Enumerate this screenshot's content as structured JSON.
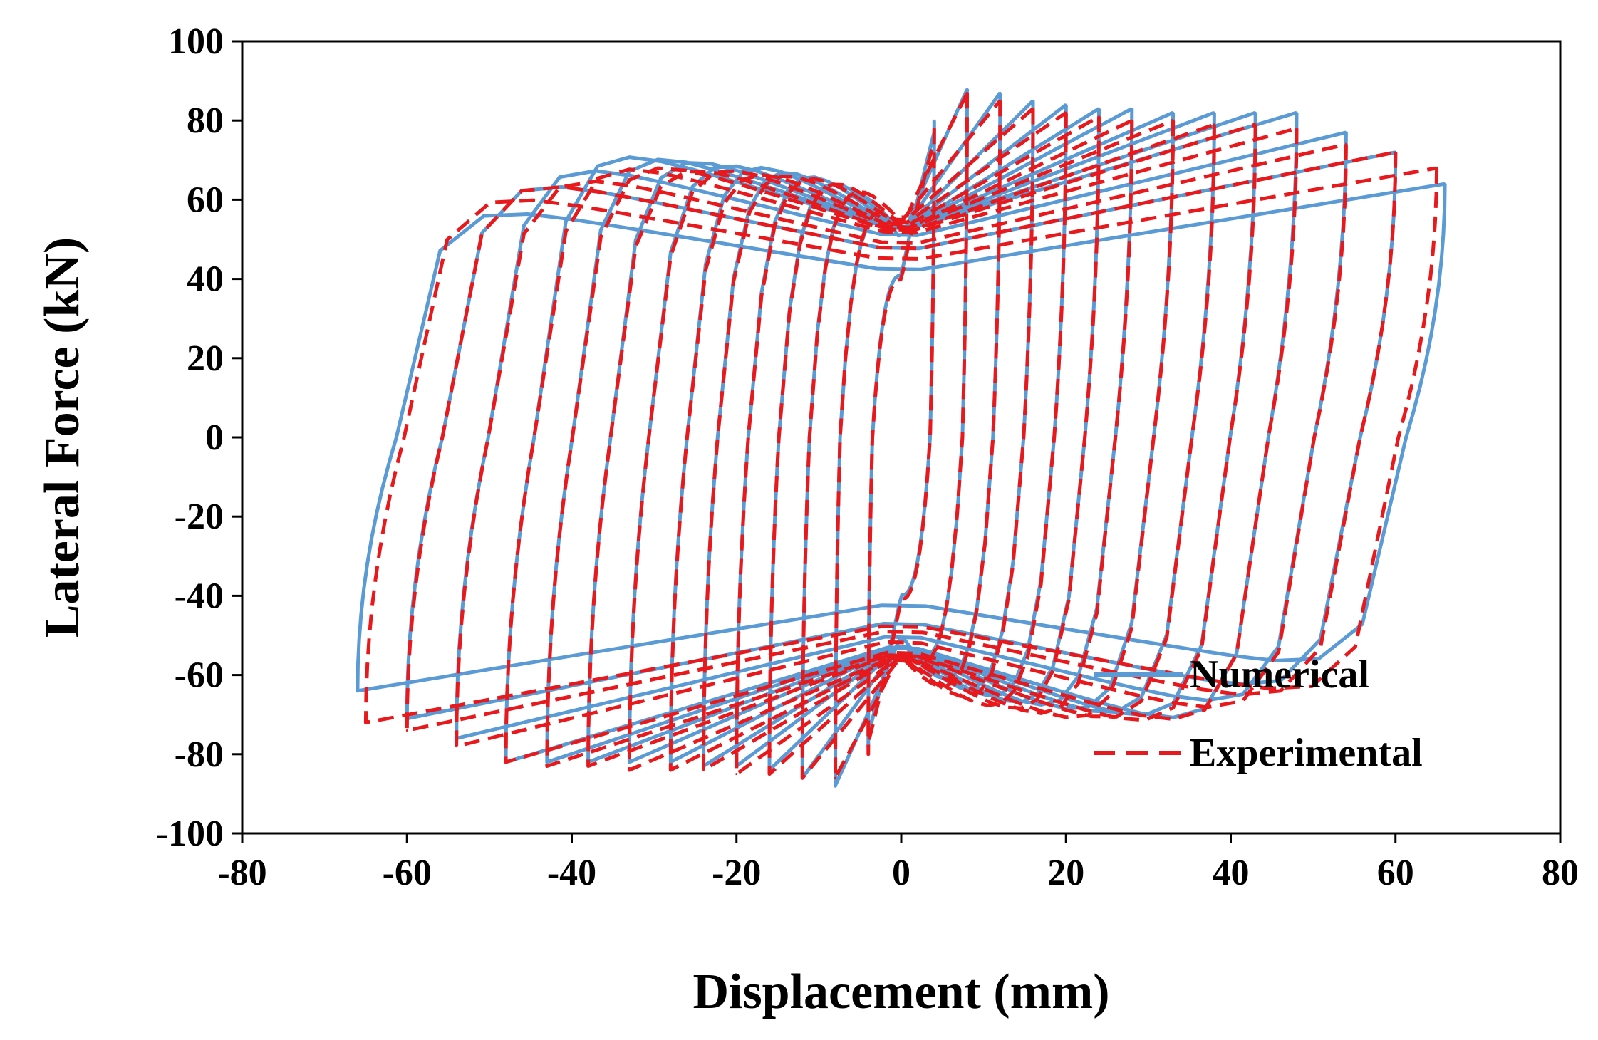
{
  "chart_data": {
    "type": "line",
    "title": "",
    "xlabel": "Displacement (mm)",
    "ylabel": "Lateral Force (kN)",
    "xlim": [
      -80,
      80
    ],
    "ylim": [
      -100,
      100
    ],
    "xticks": [
      -80,
      -60,
      -40,
      -20,
      0,
      20,
      40,
      60,
      80
    ],
    "yticks": [
      -100,
      -80,
      -60,
      -40,
      -20,
      0,
      20,
      40,
      60,
      80,
      100
    ],
    "xtick_labels": [
      "-80",
      "-60",
      "-40",
      "-20",
      "0",
      "20",
      "40",
      "60",
      "80"
    ],
    "ytick_labels": [
      "-100",
      "-80",
      "-60",
      "-40",
      "-20",
      "0",
      "20",
      "40",
      "60",
      "80",
      "100"
    ],
    "legend_position": "bottom-right",
    "series": [
      {
        "name": "Numerical",
        "color": "#5b9bd5",
        "style": "solid",
        "peak_displacements": [
          4,
          8,
          12,
          16,
          20,
          24,
          28,
          33,
          38,
          43,
          48,
          54,
          60,
          66
        ],
        "peak_forces_positive": [
          80,
          88,
          87,
          85,
          84,
          83,
          83,
          82,
          82,
          82,
          82,
          77,
          72,
          64
        ],
        "peak_forces_negative": [
          -78,
          -88,
          -86,
          -84,
          -83,
          -83,
          -82,
          -82,
          -82,
          -82,
          -82,
          -76,
          -71,
          -64
        ],
        "yield_branch_intercept_positive": 52,
        "yield_branch_intercept_negative": -52
      },
      {
        "name": "Experimental",
        "color": "#e8191c",
        "style": "dashed",
        "peak_displacements": [
          4,
          8,
          12,
          16,
          20,
          24,
          28,
          33,
          38,
          43,
          48,
          54,
          60,
          65
        ],
        "peak_forces_positive": [
          78,
          87,
          85,
          83,
          82,
          81,
          80,
          80,
          79,
          79,
          78,
          74,
          72,
          68
        ],
        "peak_forces_negative": [
          -80,
          -86,
          -86,
          -85,
          -85,
          -84,
          -84,
          -84,
          -83,
          -83,
          -82,
          -78,
          -74,
          -72
        ],
        "yield_branch_intercept_positive": 55,
        "yield_branch_intercept_negative": -58
      }
    ]
  }
}
